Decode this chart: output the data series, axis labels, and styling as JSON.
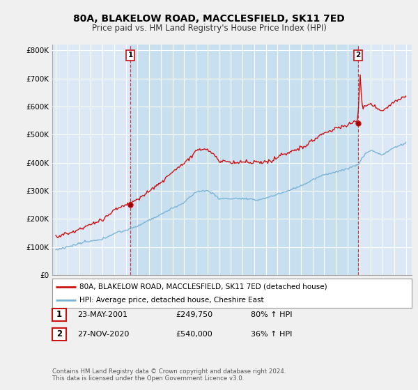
{
  "title": "80A, BLAKELOW ROAD, MACCLESFIELD, SK11 7ED",
  "subtitle": "Price paid vs. HM Land Registry's House Price Index (HPI)",
  "ylim": [
    0,
    820000
  ],
  "yticks": [
    0,
    100000,
    200000,
    300000,
    400000,
    500000,
    600000,
    700000,
    800000
  ],
  "ytick_labels": [
    "£0",
    "£100K",
    "£200K",
    "£300K",
    "£400K",
    "£500K",
    "£600K",
    "£700K",
    "£800K"
  ],
  "hpi_color": "#7ab4d8",
  "price_color": "#cc1111",
  "legend_label_price": "80A, BLAKELOW ROAD, MACCLESFIELD, SK11 7ED (detached house)",
  "legend_label_hpi": "HPI: Average price, detached house, Cheshire East",
  "transaction1_label": "1",
  "transaction1_date": "23-MAY-2001",
  "transaction1_price": "£249,750",
  "transaction1_hpi": "80% ↑ HPI",
  "transaction1_year": 2001.388,
  "transaction1_value": 249750,
  "transaction2_label": "2",
  "transaction2_date": "27-NOV-2020",
  "transaction2_price": "£540,000",
  "transaction2_hpi": "36% ↑ HPI",
  "transaction2_year": 2020.907,
  "transaction2_value": 540000,
  "footer1": "Contains HM Land Registry data © Crown copyright and database right 2024.",
  "footer2": "This data is licensed under the Open Government Licence v3.0.",
  "background_color": "#f0f0f0",
  "plot_bg_color": "#dce8f5",
  "grid_color": "#ffffff",
  "shade_color": "#c8dff0"
}
